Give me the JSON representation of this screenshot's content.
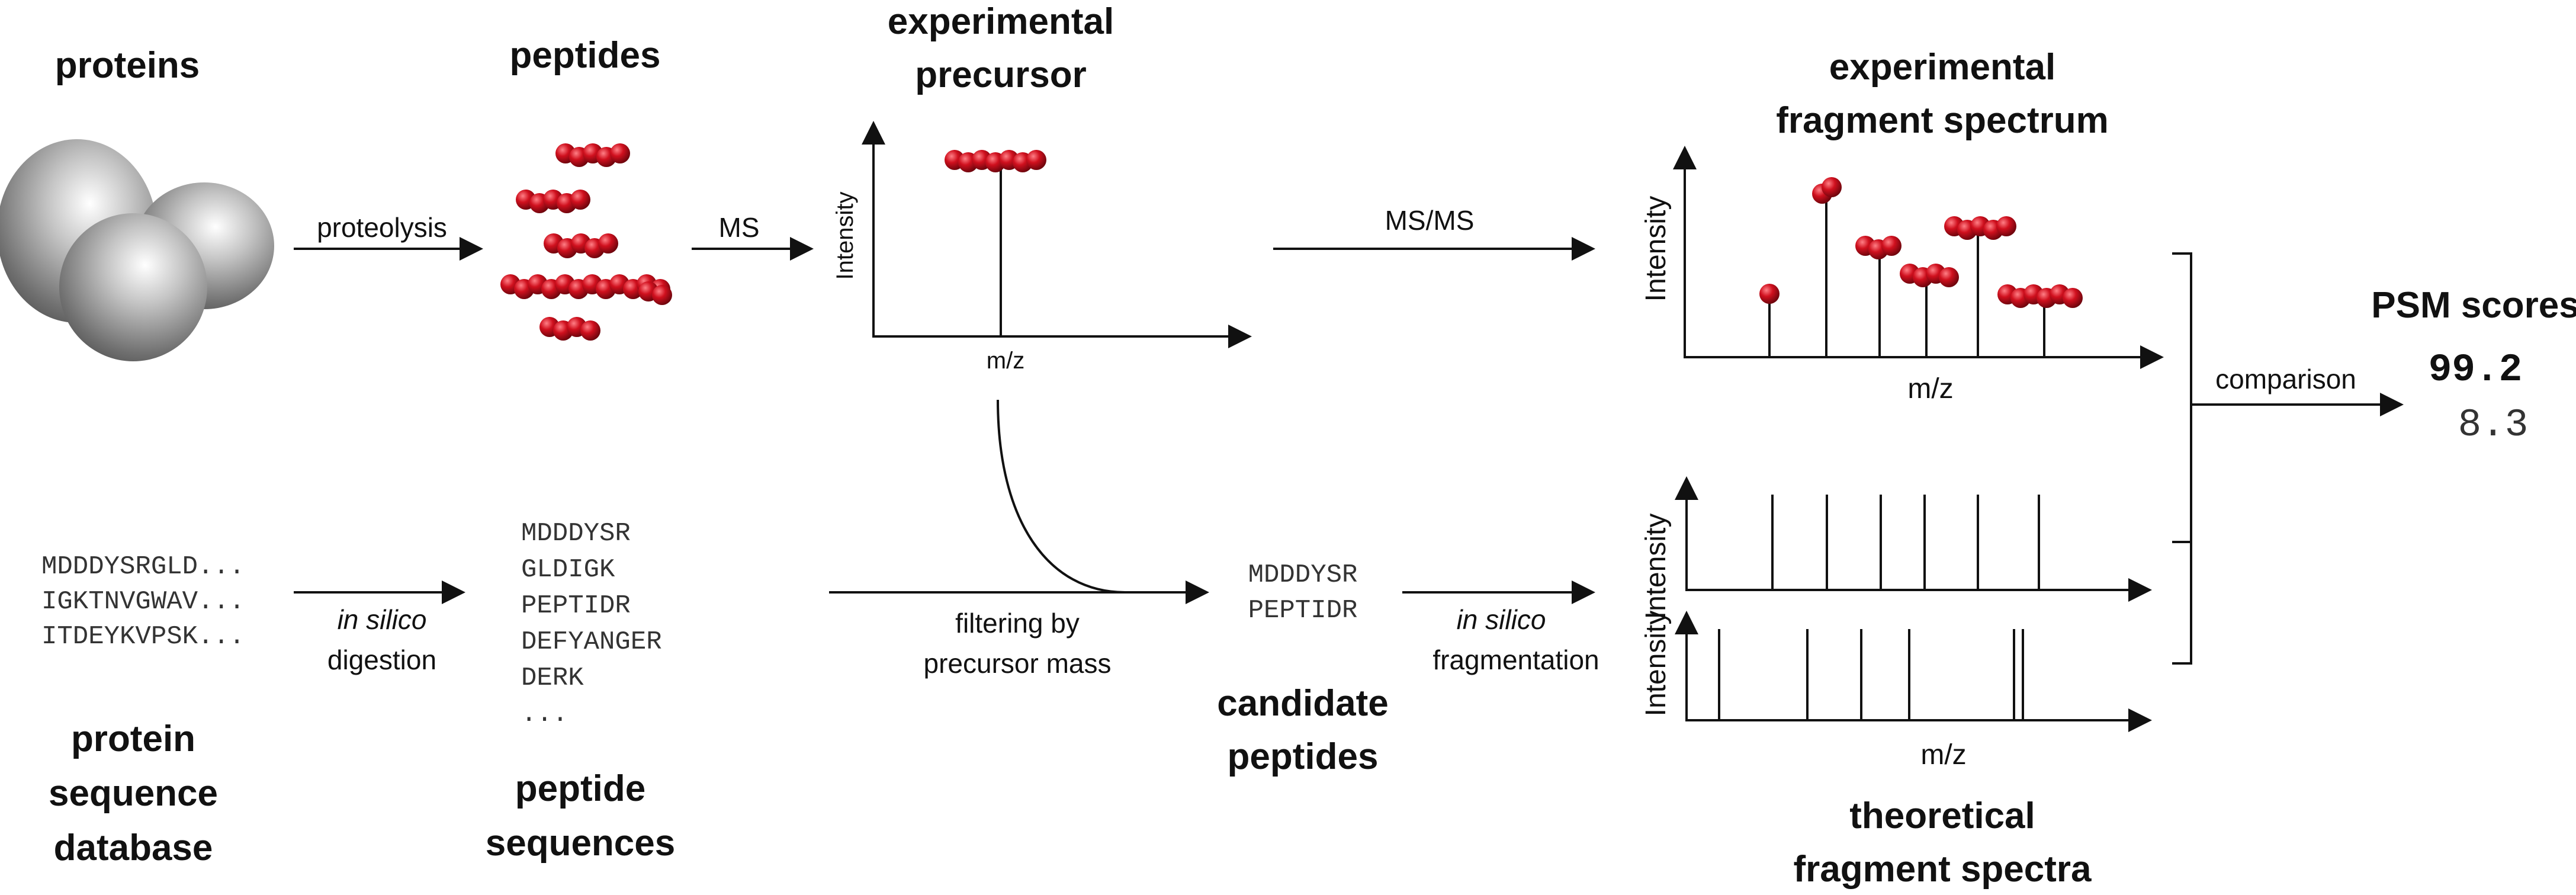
{
  "colors": {
    "bead": "#c8102e",
    "bead_dark": "#7a0a12",
    "line": "#111111",
    "protein": "#8f8f8f"
  },
  "labels": {
    "proteins": "proteins",
    "peptides": "peptides",
    "experimental_precursor": [
      "experimental",
      "precursor"
    ],
    "experimental_fragment_spectrum": [
      "experimental",
      "fragment spectrum"
    ],
    "psm_scores": "PSM scores",
    "protein_sequence_database": [
      "protein",
      "sequence",
      "database"
    ],
    "peptide_sequences": [
      "peptide",
      "sequences"
    ],
    "candidate_peptides": [
      "candidate",
      "peptides"
    ],
    "theoretical_fragment_spectra": [
      "theoretical",
      "fragment spectra"
    ]
  },
  "arrows": {
    "proteolysis": "proteolysis",
    "ms": "MS",
    "msms": "MS/MS",
    "in_silico": "in silico",
    "digestion": "digestion",
    "filtering": [
      "filtering by",
      "precursor mass"
    ],
    "fragmentation": "fragmentation",
    "comparison": "comparison"
  },
  "axes": {
    "intensity": "Intensity",
    "mz": "m/z"
  },
  "protein_sequences": [
    "MDDDYSRGLD...",
    "IGKTNVGWAV...",
    "ITDEYKVPSK..."
  ],
  "peptide_sequences": [
    "MDDDYSR",
    "GLDIGK",
    "PEPTIDR",
    "DEFYANGER",
    "DERK",
    "..."
  ],
  "candidate_sequences": [
    "MDDDYSR",
    "PEPTIDR"
  ],
  "scores": [
    "99.2",
    "8.3"
  ]
}
